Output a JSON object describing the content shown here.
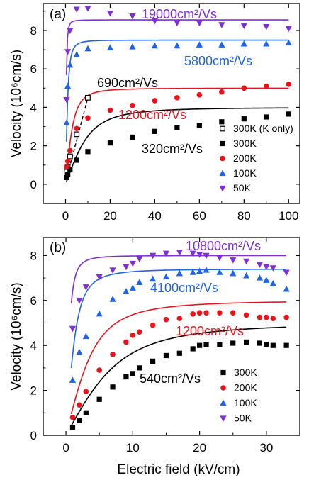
{
  "colors": {
    "300K": "#000000",
    "200K": "#e8141c",
    "100K": "#1f63e6",
    "50K": "#7e2fd6",
    "koonly": "#000000"
  },
  "xlabel": "Electric field (kV/cm)",
  "chart_data": [
    {
      "type": "scatter",
      "panel": "(a)",
      "ylabel": "Velocity (10⁶cm/s)",
      "xlim": [
        -10,
        105
      ],
      "ylim": [
        -1,
        9.4
      ],
      "xticks": [
        0,
        20,
        40,
        60,
        80,
        100
      ],
      "yticks": [
        0,
        2,
        4,
        6,
        8
      ],
      "legend_position": "lower-right",
      "series": [
        {
          "name": "300K (K only)",
          "key": "koonly",
          "marker": "open-square",
          "x": [
            0.5,
            1,
            2,
            5,
            10
          ],
          "y": [
            0.65,
            0.9,
            1.45,
            2.6,
            4.5
          ],
          "fit": {
            "mu": 690,
            "slope": 0.44,
            "x_end": 10,
            "dashed": true
          }
        },
        {
          "name": "300K",
          "key": "300K",
          "marker": "square",
          "x": [
            0.5,
            1,
            2,
            5,
            10,
            20,
            30,
            40,
            50,
            60,
            70,
            80,
            90,
            100
          ],
          "y": [
            0.35,
            0.5,
            0.75,
            1.25,
            1.7,
            2.15,
            2.45,
            2.75,
            2.95,
            3.05,
            3.25,
            3.4,
            3.5,
            3.65
          ],
          "fit": {
            "mu": 320,
            "vsat": 4.0
          }
        },
        {
          "name": "200K",
          "key": "200K",
          "marker": "circle",
          "x": [
            0.5,
            1,
            2,
            5,
            10,
            20,
            30,
            40,
            50,
            60,
            70,
            80,
            90,
            100
          ],
          "y": [
            0.9,
            1.2,
            1.75,
            2.9,
            3.45,
            3.85,
            4.1,
            4.35,
            4.5,
            4.65,
            4.8,
            5.0,
            5.1,
            5.2
          ],
          "fit": {
            "mu": 1200,
            "vsat": 5.0
          }
        },
        {
          "name": "100K",
          "key": "100K",
          "marker": "triangle-up",
          "x": [
            0.5,
            1,
            2,
            5,
            10,
            20,
            30,
            40,
            50,
            60,
            70,
            80,
            90,
            100
          ],
          "y": [
            3.2,
            5.1,
            6.2,
            6.75,
            7.05,
            7.1,
            7.15,
            7.2,
            7.2,
            7.25,
            7.25,
            7.3,
            7.3,
            7.35
          ],
          "fit": {
            "mu": 5800,
            "vsat": 7.5
          }
        },
        {
          "name": "50K",
          "key": "50K",
          "marker": "triangle-down",
          "x": [
            0.5,
            1,
            2,
            5,
            10,
            20,
            30,
            40,
            50,
            60,
            70,
            80,
            90,
            100
          ],
          "y": [
            4.4,
            6.9,
            8.0,
            9.1,
            9.15,
            8.9,
            8.75,
            8.5,
            8.4,
            8.4,
            8.3,
            8.25,
            8.2,
            8.1
          ],
          "fit": {
            "mu": 19000,
            "vsat": 8.55
          }
        }
      ],
      "annotations": [
        {
          "text": "19000cm²/Vs",
          "key": "50K"
        },
        {
          "text": "5800cm²/Vs",
          "key": "100K"
        },
        {
          "text": "690cm²/Vs",
          "key": "koonly"
        },
        {
          "text": "1200cm²/Vs",
          "key": "200K"
        },
        {
          "text": "320cm²/Vs",
          "key": "300K"
        }
      ]
    },
    {
      "type": "scatter",
      "panel": "(b)",
      "ylabel": "Velocity (10⁶cm/s)",
      "xlim": [
        -3.4,
        35
      ],
      "ylim": [
        0,
        8.8
      ],
      "xticks": [
        0,
        10,
        20,
        30
      ],
      "yticks": [
        0,
        2,
        4,
        6,
        8
      ],
      "legend_position": "lower-right",
      "series": [
        {
          "name": "300K",
          "key": "300K",
          "marker": "square",
          "x": [
            1,
            2,
            3,
            5,
            7,
            9,
            10,
            11,
            13,
            15,
            17,
            19,
            20,
            21,
            23,
            25,
            27,
            29,
            30,
            31,
            33
          ],
          "y": [
            0.35,
            0.65,
            1.0,
            1.6,
            2.15,
            2.6,
            2.75,
            3.0,
            3.3,
            3.55,
            3.65,
            3.85,
            4.0,
            4.05,
            4.05,
            4.1,
            4.15,
            4.1,
            4.05,
            4.0,
            4.0
          ],
          "fit": {
            "mu": 540,
            "vsat": 5.0
          }
        },
        {
          "name": "200K",
          "key": "200K",
          "marker": "circle",
          "x": [
            1,
            2,
            3,
            5,
            7,
            9,
            10,
            11,
            13,
            15,
            17,
            19,
            20,
            21,
            23,
            25,
            27,
            29,
            30,
            31,
            33
          ],
          "y": [
            0.8,
            1.35,
            1.95,
            2.9,
            3.6,
            4.15,
            4.45,
            4.6,
            4.9,
            5.15,
            5.2,
            5.4,
            5.45,
            5.45,
            5.45,
            5.45,
            5.35,
            5.25,
            5.25,
            5.2,
            5.25
          ],
          "fit": {
            "mu": 1200,
            "vsat": 6.0
          }
        },
        {
          "name": "100K",
          "key": "100K",
          "marker": "triangle-up",
          "x": [
            1,
            2,
            3,
            5,
            7,
            9,
            10,
            11,
            13,
            15,
            17,
            19,
            20,
            21,
            23,
            25,
            27,
            29,
            30,
            31,
            33
          ],
          "y": [
            2.45,
            3.7,
            4.4,
            5.4,
            6.05,
            6.4,
            6.55,
            6.8,
            6.95,
            7.05,
            7.2,
            7.25,
            7.3,
            7.35,
            7.25,
            7.2,
            7.1,
            7.0,
            6.9,
            6.75,
            6.5
          ],
          "fit": {
            "mu": 4100,
            "vsat": 7.4
          }
        },
        {
          "name": "50K",
          "key": "50K",
          "marker": "triangle-down",
          "x": [
            1,
            2,
            3,
            5,
            7,
            9,
            10,
            11,
            13,
            15,
            17,
            19,
            20,
            21,
            23,
            25,
            27,
            29,
            30,
            31,
            33
          ],
          "y": [
            4.75,
            6.0,
            6.6,
            7.05,
            7.35,
            7.5,
            7.65,
            7.85,
            8.0,
            8.1,
            8.15,
            8.1,
            8.05,
            8.0,
            7.9,
            7.8,
            7.75,
            7.6,
            7.5,
            7.45,
            7.25
          ],
          "fit": {
            "mu": 10800,
            "vsat": 8.0
          }
        }
      ],
      "annotations": [
        {
          "text": "10800cm²/Vs",
          "key": "50K"
        },
        {
          "text": "4100cm²/Vs",
          "key": "100K"
        },
        {
          "text": "1200cm²/Vs",
          "key": "200K"
        },
        {
          "text": "540cm²/Vs",
          "key": "300K"
        }
      ]
    }
  ]
}
